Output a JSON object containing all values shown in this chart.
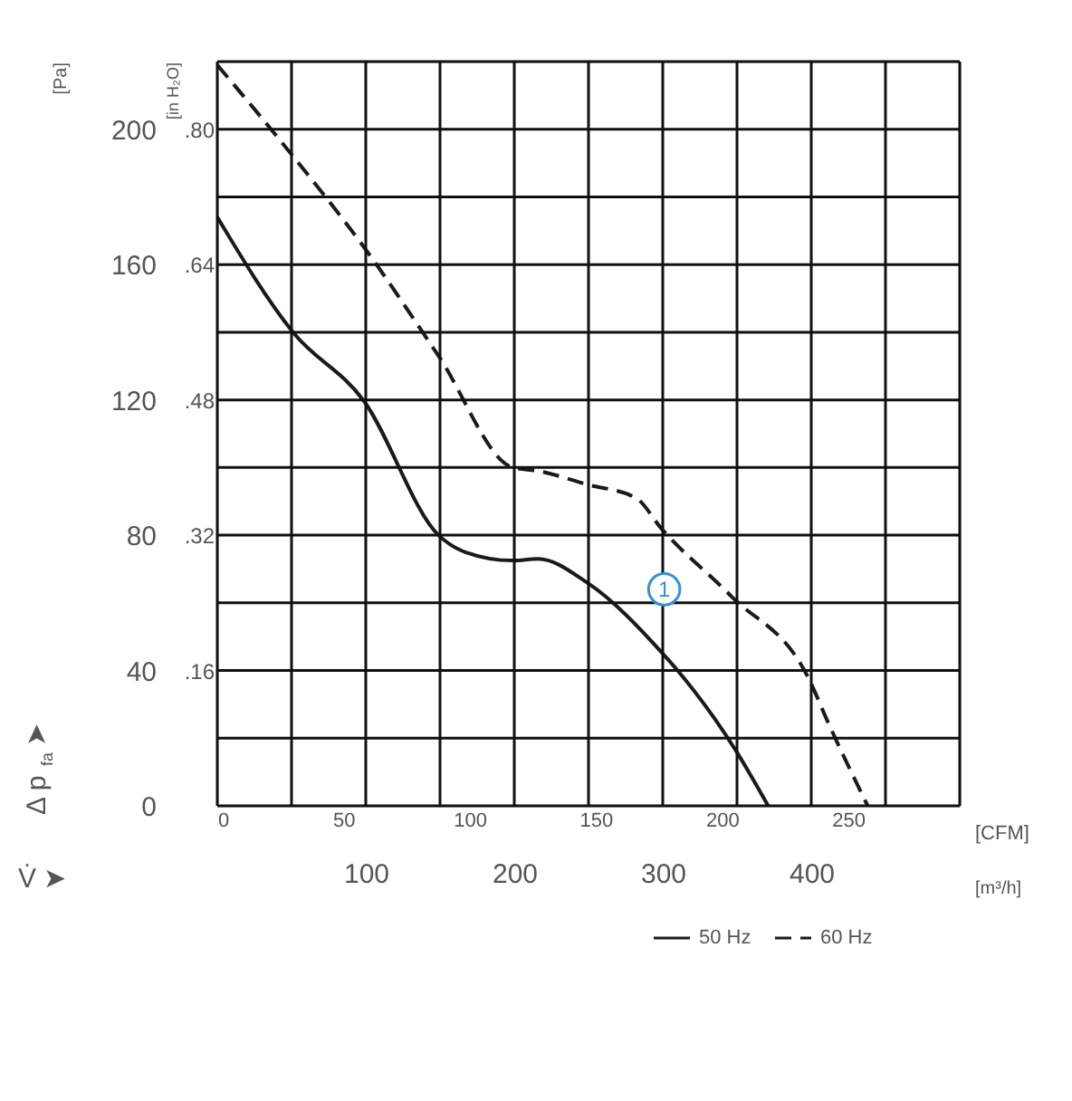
{
  "chart_data": {
    "type": "line",
    "xlabel": "[m³/h]",
    "x2label": "[CFM]",
    "ylabel": "[Pa]",
    "y2label": "[in H₂O]",
    "xlim": [
      0,
      500
    ],
    "xticks": [
      100,
      200,
      300,
      400
    ],
    "x2lim": [
      0,
      294.3
    ],
    "x2ticks": [
      0,
      50,
      100,
      150,
      200,
      250
    ],
    "ylim": [
      0,
      220
    ],
    "yticks": [
      0,
      40,
      80,
      120,
      160,
      200
    ],
    "y2lim": [
      0,
      0.88
    ],
    "y2ticks": [
      {
        "value": 0.16,
        "label": ".16"
      },
      {
        "value": 0.32,
        "label": ".32"
      },
      {
        "value": 0.48,
        "label": ".48"
      },
      {
        "value": 0.64,
        "label": ".64"
      },
      {
        "value": 0.8,
        "label": ".80"
      }
    ],
    "grid": true,
    "legend": "bottom",
    "marker": "none",
    "annotations": [
      "Δ p$_{fa}$ ➤",
      "V̇ ➤",
      {
        "text": "1",
        "x": 301,
        "y": 64
      }
    ],
    "series": [
      {
        "name": "50 Hz",
        "color": "#1a1a1a",
        "line_style": "solid",
        "x": [
          0,
          51,
          99,
          149,
          167,
          199,
          216,
          249,
          300,
          310,
          349,
          371
        ],
        "values": [
          174,
          140,
          119.5,
          80,
          75,
          72.5,
          73,
          66,
          45,
          40,
          16.5,
          0
        ]
      },
      {
        "name": "60 Hz",
        "color": "#1a1a1a",
        "line_style": "dashed",
        "x": [
          0,
          51,
          99,
          149,
          199,
          216,
          249,
          282,
          299,
          346,
          399,
          411,
          438
        ],
        "values": [
          219,
          192,
          165,
          133,
          100,
          99,
          95,
          91,
          82,
          62,
          37,
          25,
          0
        ]
      }
    ]
  }
}
